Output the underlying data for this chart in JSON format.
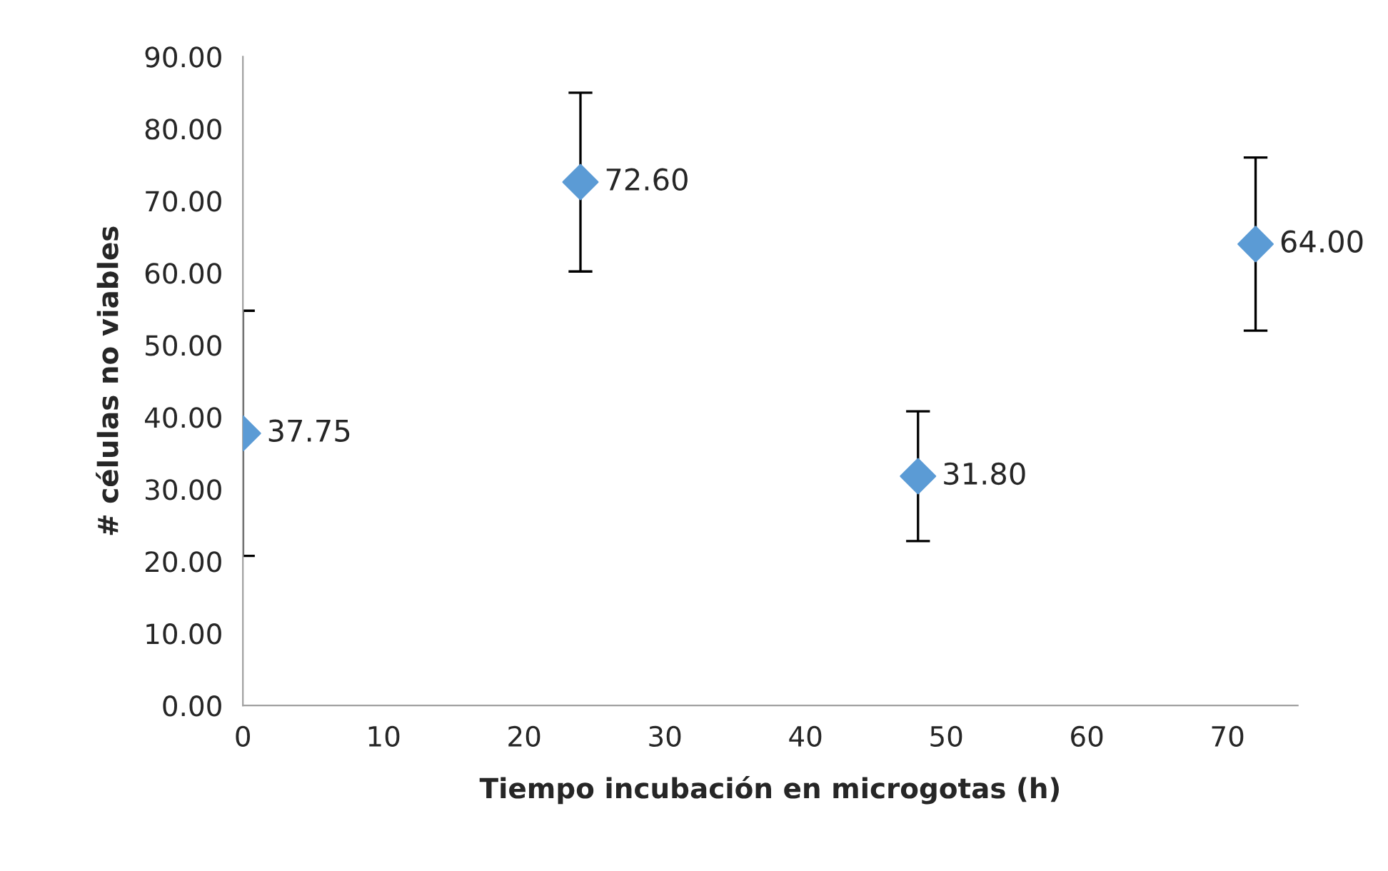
{
  "chart_data": {
    "type": "scatter",
    "xlabel": "Tiempo incubación en microgotas (h)",
    "ylabel": "# células no viables",
    "x": [
      0,
      24,
      48,
      72
    ],
    "series": [
      {
        "color": "#5b9bd5",
        "values": [
          37.75,
          72.6,
          31.8,
          64.0
        ],
        "errors": [
          17,
          12.4,
          9,
          12
        ],
        "value_labels": [
          "37.75",
          "72.60",
          "31.80",
          "64.00"
        ]
      }
    ],
    "marker": "diamond",
    "xlim": [
      0,
      75
    ],
    "xticks": [
      0,
      10,
      20,
      30,
      40,
      50,
      60,
      70
    ],
    "ylim": [
      0,
      90
    ],
    "yticks": [
      {
        "value": 0,
        "label": "0.00"
      },
      {
        "value": 10,
        "label": "10.00"
      },
      {
        "value": 20,
        "label": "20.00"
      },
      {
        "value": 30,
        "label": "30.00"
      },
      {
        "value": 40,
        "label": "40.00"
      },
      {
        "value": 50,
        "label": "50.00"
      },
      {
        "value": 60,
        "label": "60.00"
      },
      {
        "value": 70,
        "label": "70.00"
      },
      {
        "value": 80,
        "label": "80.00"
      },
      {
        "value": 90,
        "label": "90.00"
      }
    ],
    "grid": false,
    "legend": false
  }
}
